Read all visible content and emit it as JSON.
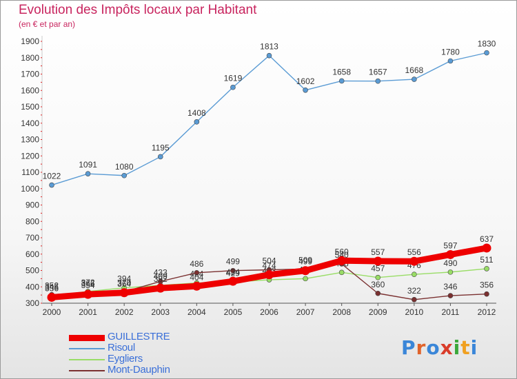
{
  "title": "Evolution des Impôts locaux par Habitant",
  "subtitle": "(en € et par an)",
  "logo": {
    "text": "Proxiti",
    "colors": [
      "#3a86d8",
      "#e0632a",
      "#3a86d8",
      "#d93c2a",
      "#3aa83a",
      "#f0a020",
      "#3a86d8"
    ]
  },
  "chart_data": {
    "type": "line",
    "x": [
      "2000",
      "2001",
      "2002",
      "2003",
      "2004",
      "2005",
      "2006",
      "2007",
      "2008",
      "2009",
      "2010",
      "2011",
      "2012"
    ],
    "ylim": [
      300,
      1900
    ],
    "yticks": [
      300,
      400,
      500,
      600,
      700,
      800,
      900,
      1000,
      1100,
      1200,
      1300,
      1400,
      1500,
      1600,
      1700,
      1800,
      1900
    ],
    "grid": false,
    "legend": "bottom-left",
    "series": [
      {
        "name": "Risoul",
        "color": "#5a9bd4",
        "values": [
          1022,
          1091,
          1080,
          1195,
          1408,
          1619,
          1813,
          1602,
          1658,
          1657,
          1668,
          1780,
          1830
        ]
      },
      {
        "name": "Eygliers",
        "color": "#99dd66",
        "values": [
          345,
          372,
          394,
          409,
          424,
          429,
          443,
          450,
          488,
          457,
          476,
          490,
          511
        ]
      },
      {
        "name": "Mont-Dauphin",
        "color": "#7a3030",
        "values": [
          352,
          366,
          370,
          433,
          486,
          499,
          504,
          509,
          540,
          360,
          322,
          346,
          356
        ]
      },
      {
        "name": "GUILLESTRE",
        "color": "#ee0000",
        "values": [
          336,
          354,
          364,
          392,
          404,
          434,
          474,
          499,
          560,
          557,
          556,
          597,
          637
        ]
      }
    ]
  }
}
